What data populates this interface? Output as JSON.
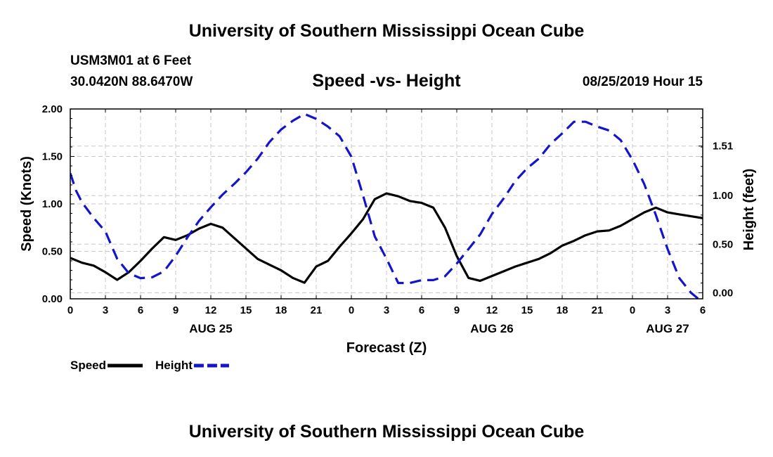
{
  "header": {
    "title": "University of Southern Mississippi Ocean Cube",
    "station": "USM3M01 at 6 Feet",
    "coordinates": "30.0420N 88.6470W",
    "subtitle": "Speed -vs- Height",
    "timestamp": "08/25/2019 Hour 15"
  },
  "footer": {
    "title": "University of Southern Mississippi Ocean Cube"
  },
  "chart_data": {
    "type": "line",
    "title": "Speed -vs- Height",
    "xlabel": "Forecast (Z)",
    "ylabel_left": "Speed (Knots)",
    "ylabel_right": "Height (feet)",
    "grid": true,
    "x_range": [
      0,
      54
    ],
    "ylim_left": [
      0,
      2.0
    ],
    "ylim_right": [
      -0.0625,
      1.8917
    ],
    "x_tick_labels": [
      "0",
      "3",
      "6",
      "9",
      "12",
      "15",
      "18",
      "21",
      "0",
      "3",
      "6",
      "9",
      "12",
      "15",
      "18",
      "21",
      "0",
      "3",
      "6"
    ],
    "left_tick_labels": [
      "0.00",
      "0.50",
      "1.00",
      "1.50",
      "2.00"
    ],
    "right_tick_labels": [
      "0.00",
      "0.50",
      "1.00",
      "1.51"
    ],
    "right_tick_values": [
      0.0,
      0.5,
      1.0,
      1.51
    ],
    "date_labels": [
      {
        "x": 12,
        "label": "AUG 25"
      },
      {
        "x": 36,
        "label": "AUG 26"
      },
      {
        "x": 51,
        "label": "AUG 27"
      }
    ],
    "legend": [
      {
        "name": "Speed",
        "color": "#000000",
        "style": "solid"
      },
      {
        "name": "Height",
        "color": "#1414cc",
        "style": "dashed"
      }
    ],
    "series": [
      {
        "name": "Speed",
        "axis": "left",
        "color": "#000000",
        "style": "solid",
        "x": [
          0,
          1,
          2,
          3,
          4,
          5,
          6,
          7,
          8,
          9,
          10,
          11,
          12,
          13,
          14,
          15,
          16,
          17,
          18,
          19,
          20,
          21,
          22,
          23,
          24,
          25,
          26,
          27,
          28,
          29,
          30,
          31,
          32,
          33,
          34,
          35,
          36,
          37,
          38,
          39,
          40,
          41,
          42,
          43,
          44,
          45,
          46,
          47,
          48,
          49,
          50,
          51,
          52,
          53,
          54
        ],
        "values": [
          0.43,
          0.38,
          0.35,
          0.28,
          0.2,
          0.28,
          0.4,
          0.53,
          0.65,
          0.62,
          0.67,
          0.74,
          0.79,
          0.75,
          0.64,
          0.53,
          0.42,
          0.36,
          0.3,
          0.22,
          0.17,
          0.34,
          0.4,
          0.55,
          0.69,
          0.84,
          1.05,
          1.11,
          1.08,
          1.03,
          1.01,
          0.96,
          0.75,
          0.45,
          0.22,
          0.19,
          0.24,
          0.29,
          0.34,
          0.38,
          0.42,
          0.48,
          0.56,
          0.61,
          0.67,
          0.71,
          0.72,
          0.77,
          0.84,
          0.91,
          0.96,
          0.91,
          0.89,
          0.87,
          0.85
        ]
      },
      {
        "name": "Height",
        "axis": "right",
        "color": "#1414cc",
        "style": "dashed",
        "x": [
          0,
          0.5,
          1,
          2,
          3,
          4,
          5,
          6,
          7,
          8,
          9,
          10,
          11,
          12,
          13,
          14,
          15,
          16,
          17,
          18,
          19,
          20,
          21,
          22,
          23,
          24,
          25,
          26,
          27,
          28,
          29,
          30,
          31,
          32,
          33,
          34,
          35,
          36,
          37,
          38,
          39,
          40,
          41,
          42,
          43,
          44,
          45,
          46,
          47,
          48,
          49,
          50,
          51,
          52,
          53,
          54
        ],
        "values": [
          1.23,
          1.05,
          0.93,
          0.77,
          0.63,
          0.35,
          0.2,
          0.15,
          0.16,
          0.22,
          0.38,
          0.57,
          0.74,
          0.88,
          1.01,
          1.12,
          1.24,
          1.38,
          1.55,
          1.68,
          1.77,
          1.84,
          1.79,
          1.71,
          1.61,
          1.4,
          1.0,
          0.58,
          0.35,
          0.1,
          0.1,
          0.13,
          0.13,
          0.17,
          0.3,
          0.45,
          0.6,
          0.81,
          0.97,
          1.15,
          1.28,
          1.38,
          1.53,
          1.64,
          1.76,
          1.76,
          1.71,
          1.67,
          1.57,
          1.37,
          1.12,
          0.8,
          0.45,
          0.15,
          0.0,
          -0.1
        ]
      }
    ]
  }
}
